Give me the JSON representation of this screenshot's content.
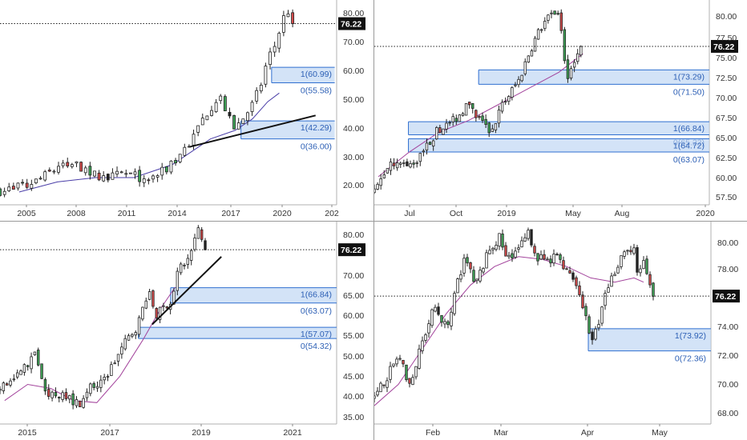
{
  "chart_data": [
    {
      "type": "candlestick",
      "id": "monthly",
      "x_ticks": [
        "2005",
        "2008",
        "2011",
        "2014",
        "2017",
        "2020",
        "202"
      ],
      "y_ticks": [
        "20.00",
        "30.00",
        "40.00",
        "50.00",
        "60.00",
        "70.00",
        "80.00"
      ],
      "ylim": [
        14,
        84
      ],
      "price_line": 76.22,
      "price_label": "76.22",
      "start": 2004.0,
      "end": 2021.6,
      "path": [
        [
          2004.0,
          18
        ],
        [
          2004.8,
          19
        ],
        [
          2005.4,
          19.5
        ],
        [
          2006.1,
          22
        ],
        [
          2007.0,
          26
        ],
        [
          2008.0,
          27
        ],
        [
          2008.9,
          24
        ],
        [
          2009.6,
          22
        ],
        [
          2010.4,
          24
        ],
        [
          2011.1,
          23
        ],
        [
          2011.8,
          22
        ],
        [
          2012.4,
          24
        ],
        [
          2013.0,
          27
        ],
        [
          2013.5,
          32
        ],
        [
          2014.0,
          35
        ],
        [
          2014.5,
          42
        ],
        [
          2015.0,
          47
        ],
        [
          2015.5,
          52
        ],
        [
          2015.8,
          44
        ],
        [
          2016.3,
          40
        ],
        [
          2016.8,
          44
        ],
        [
          2017.2,
          48
        ],
        [
          2017.6,
          54
        ],
        [
          2018.0,
          64
        ],
        [
          2018.4,
          69
        ],
        [
          2018.8,
          78
        ],
        [
          2019.1,
          81
        ],
        [
          2019.3,
          76.2
        ]
      ],
      "avg": [
        [
          2005,
          17.5
        ],
        [
          2007,
          21
        ],
        [
          2009,
          22.5
        ],
        [
          2011,
          22.5
        ],
        [
          2013,
          27
        ],
        [
          2015,
          36
        ],
        [
          2016.3,
          39
        ],
        [
          2017.2,
          43
        ],
        [
          2018.0,
          49
        ],
        [
          2018.6,
          52
        ]
      ],
      "trendline": [
        [
          2013.9,
          33.2
        ],
        [
          2020.5,
          44.2
        ]
      ],
      "zones": [
        {
          "x0": 2016.6,
          "x1": 2021.5,
          "y_top": 42.29,
          "y_bottom": 36.0,
          "labels": [
            "1(42.29)",
            "0(36.00)"
          ]
        },
        {
          "x0": 2018.2,
          "x1": 2021.5,
          "y_top": 60.99,
          "y_bottom": 55.58,
          "labels": [
            "1(60.99)",
            "0(55.58)"
          ]
        }
      ]
    },
    {
      "type": "candlestick",
      "id": "daily-recent",
      "x_ticks": [
        "Jul",
        "Oct",
        "2019",
        "May",
        "Aug",
        "2020"
      ],
      "y_ticks": [
        "57.50",
        "60.00",
        "62.50",
        "65.00",
        "67.50",
        "70.00",
        "72.50",
        "75.00",
        "77.50",
        "80.00"
      ],
      "ylim": [
        56.0,
        81.5
      ],
      "price_line": 76.22,
      "price_label": "76.22",
      "start": 2018.38,
      "end": 2020.05,
      "path": [
        [
          2018.38,
          58
        ],
        [
          2018.46,
          62
        ],
        [
          2018.54,
          61
        ],
        [
          2018.62,
          63
        ],
        [
          2018.7,
          66
        ],
        [
          2018.78,
          67
        ],
        [
          2018.84,
          69
        ],
        [
          2018.9,
          67
        ],
        [
          2018.96,
          65.5
        ],
        [
          2019.02,
          69
        ],
        [
          2019.1,
          72
        ],
        [
          2019.16,
          76
        ],
        [
          2019.22,
          79
        ],
        [
          2019.28,
          80.5
        ],
        [
          2019.31,
          79
        ],
        [
          2019.34,
          72.5
        ],
        [
          2019.38,
          75
        ],
        [
          2019.41,
          76.2
        ]
      ],
      "avg": [
        [
          2018.4,
          60
        ],
        [
          2018.55,
          63
        ],
        [
          2018.7,
          65.5
        ],
        [
          2018.85,
          67
        ],
        [
          2019.0,
          69
        ],
        [
          2019.15,
          71
        ],
        [
          2019.3,
          73
        ],
        [
          2019.42,
          75.3
        ]
      ],
      "trendline": [],
      "zones": [
        {
          "x0": 2018.9,
          "x1": 2020.05,
          "y_top": 73.29,
          "y_bottom": 71.5,
          "labels": [
            "1(73.29)",
            "0(71.50)"
          ]
        },
        {
          "x0": 2018.55,
          "x1": 2020.05,
          "y_top": 66.84,
          "y_bottom": 65.22,
          "labels": [
            "1(66.84)",
            "0(65.22)"
          ]
        },
        {
          "x0": 2018.55,
          "x1": 2020.05,
          "y_top": 64.72,
          "y_bottom": 63.07,
          "labels": [
            "1(64.72)",
            "0(63.07)"
          ]
        }
      ]
    },
    {
      "type": "candlestick",
      "id": "weekly",
      "x_ticks": [
        "2015",
        "2017",
        "2019",
        "2021"
      ],
      "y_ticks": [
        "35.00",
        "40.00",
        "45.00",
        "50.00",
        "55.00",
        "60.00",
        "65.00",
        "70.00",
        "75.00",
        "80.00"
      ],
      "ylim": [
        33,
        83
      ],
      "price_line": 76.22,
      "price_label": "76.22",
      "start": 2014.9,
      "end": 2022.2,
      "path": [
        [
          2014.9,
          42
        ],
        [
          2015.2,
          44
        ],
        [
          2015.5,
          48
        ],
        [
          2015.7,
          51
        ],
        [
          2015.8,
          44
        ],
        [
          2016.0,
          40
        ],
        [
          2016.3,
          41
        ],
        [
          2016.6,
          38
        ],
        [
          2016.8,
          42
        ],
        [
          2017.1,
          43
        ],
        [
          2017.3,
          47
        ],
        [
          2017.6,
          53
        ],
        [
          2017.9,
          58
        ],
        [
          2018.1,
          66
        ],
        [
          2018.3,
          60
        ],
        [
          2018.6,
          64
        ],
        [
          2018.8,
          72
        ],
        [
          2019.0,
          74
        ],
        [
          2019.1,
          78
        ],
        [
          2019.2,
          81
        ],
        [
          2019.35,
          76.2
        ]
      ],
      "avg": [
        [
          2015.0,
          39
        ],
        [
          2015.5,
          43
        ],
        [
          2016.0,
          42
        ],
        [
          2016.5,
          39
        ],
        [
          2017.0,
          38.5
        ],
        [
          2017.5,
          45
        ],
        [
          2018.0,
          54
        ],
        [
          2018.4,
          62
        ],
        [
          2018.7,
          67
        ]
      ],
      "trendline": [
        [
          2018.2,
          57.8
        ],
        [
          2019.7,
          74.5
        ]
      ],
      "zones": [
        {
          "x0": 2018.6,
          "x1": 2022.2,
          "y_top": 66.84,
          "y_bottom": 63.07,
          "labels": [
            "1(66.84)",
            "0(63.07)"
          ]
        },
        {
          "x0": 2017.9,
          "x1": 2022.2,
          "y_top": 57.07,
          "y_bottom": 54.32,
          "labels": [
            "1(57.07)",
            "0(54.32)"
          ]
        }
      ]
    },
    {
      "type": "candlestick",
      "id": "hourly",
      "x_ticks": [
        "Feb",
        "Mar",
        "Apr",
        "May"
      ],
      "y_ticks": [
        "68.00",
        "70.00",
        "72.00",
        "74.00",
        "76.00",
        "78.00",
        "80.00"
      ],
      "ylim": [
        67.3,
        81.0
      ],
      "price_line": 76.22,
      "price_label": "76.22",
      "start": 0,
      "end": 140,
      "path": [
        [
          0,
          69
        ],
        [
          5,
          70.5
        ],
        [
          10,
          72
        ],
        [
          15,
          70
        ],
        [
          20,
          73
        ],
        [
          25,
          75.5
        ],
        [
          30,
          74
        ],
        [
          35,
          77.5
        ],
        [
          38,
          79
        ],
        [
          42,
          77
        ],
        [
          48,
          79.5
        ],
        [
          52,
          80.3
        ],
        [
          55,
          79
        ],
        [
          60,
          79.5
        ],
        [
          64,
          80.7
        ],
        [
          68,
          79
        ],
        [
          72,
          78.5
        ],
        [
          76,
          79.2
        ],
        [
          80,
          78
        ],
        [
          84,
          77
        ],
        [
          88,
          75
        ],
        [
          90,
          73
        ],
        [
          93,
          74
        ],
        [
          96,
          76.5
        ],
        [
          100,
          78
        ],
        [
          104,
          79.5
        ],
        [
          108,
          79.3
        ],
        [
          110,
          77.5
        ],
        [
          112,
          78.6
        ],
        [
          116,
          76.2
        ]
      ],
      "avg": [
        [
          0,
          68.5
        ],
        [
          10,
          70
        ],
        [
          20,
          72.5
        ],
        [
          30,
          75
        ],
        [
          40,
          77
        ],
        [
          50,
          78.3
        ],
        [
          60,
          79
        ],
        [
          70,
          78.8
        ],
        [
          80,
          78.3
        ],
        [
          90,
          77.5
        ],
        [
          100,
          77.2
        ],
        [
          108,
          77.5
        ],
        [
          112,
          77.2
        ]
      ],
      "trendline": [],
      "zones": [
        {
          "x0": 89,
          "x1": 140,
          "y_top": 73.92,
          "y_bottom": 72.36,
          "labels": [
            "1(73.92)",
            "0(72.36)"
          ]
        }
      ]
    }
  ]
}
